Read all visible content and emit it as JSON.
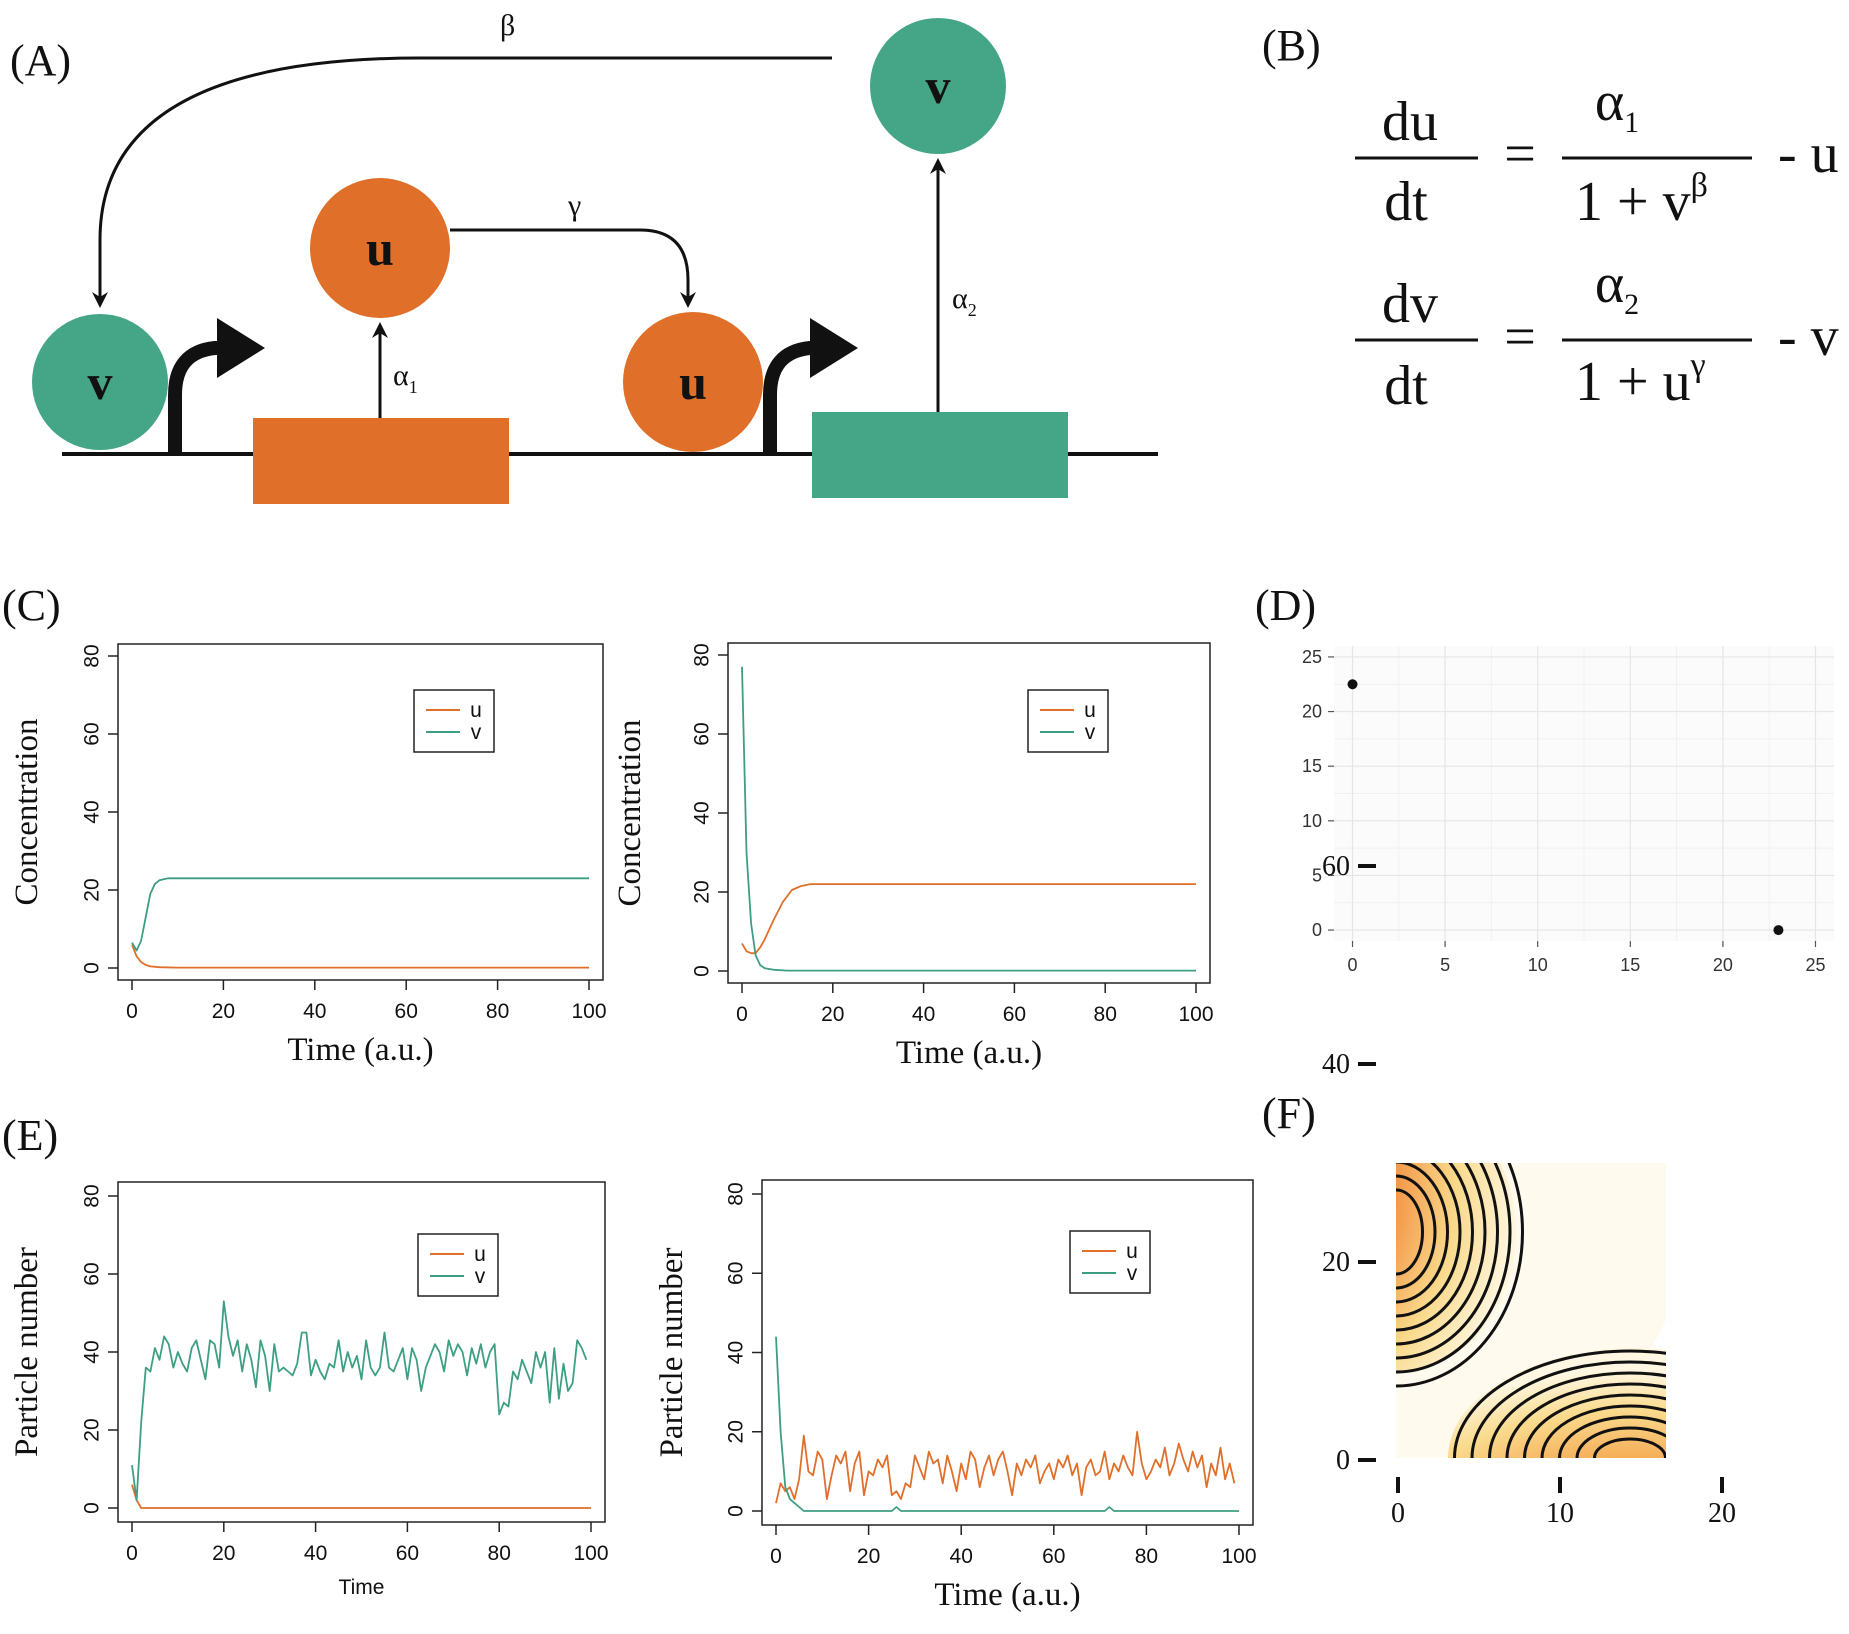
{
  "panel_labels": {
    "A": "(A)",
    "B": "(B)",
    "C": "(C)",
    "D": "(D)",
    "E": "(E)",
    "F": "(F)"
  },
  "colors": {
    "u": "#E07029",
    "v": "#45A687",
    "u_line": "#E06F2B",
    "v_line": "#3E9E83"
  },
  "diagram": {
    "u": "u",
    "v": "v",
    "beta": "β",
    "gamma": "γ",
    "alpha": "α",
    "sub1": "1",
    "sub2": "2"
  },
  "equations": {
    "du": "du",
    "dv": "dv",
    "dt": "dt",
    "equals": "=",
    "alpha": "α",
    "sub1": "1",
    "sub2": "2",
    "one_plus_v": "1 + v",
    "one_plus_u": "1 + u",
    "beta": "β",
    "gamma": "γ",
    "minus_u": "- u",
    "minus_v": "- v"
  },
  "chart_data": [
    {
      "id": "C-left",
      "type": "line",
      "xlabel": "Time (a.u.)",
      "ylabel": "Concentration",
      "xlim": [
        0,
        100
      ],
      "ylim": [
        0,
        80
      ],
      "xticks": [
        0,
        20,
        40,
        60,
        80,
        100
      ],
      "yticks": [
        0,
        20,
        40,
        60,
        80
      ],
      "legend": "top-right",
      "series": [
        {
          "name": "u",
          "x": [
            0,
            1,
            2,
            3,
            4,
            6,
            10,
            100
          ],
          "values": [
            6,
            3,
            1.5,
            0.8,
            0.4,
            0.2,
            0.1,
            0.1
          ]
        },
        {
          "name": "v",
          "x": [
            0,
            1,
            2,
            3,
            4,
            5,
            6,
            7,
            8,
            10,
            100
          ],
          "values": [
            6.5,
            4.5,
            7,
            13,
            19,
            21.5,
            22.5,
            22.8,
            23,
            23,
            23
          ]
        }
      ]
    },
    {
      "id": "C-right",
      "type": "line",
      "xlabel": "Time (a.u.)",
      "ylabel": "Concentration",
      "xlim": [
        0,
        100
      ],
      "ylim": [
        0,
        80
      ],
      "xticks": [
        0,
        20,
        40,
        60,
        80,
        100
      ],
      "yticks": [
        0,
        20,
        40,
        60,
        80
      ],
      "legend": "top-right",
      "series": [
        {
          "name": "u",
          "x": [
            0,
            1,
            2,
            3,
            4,
            5,
            7,
            9,
            11,
            13,
            15,
            20,
            100
          ],
          "values": [
            7,
            5,
            4.5,
            4.5,
            6,
            8,
            13,
            17.5,
            20.5,
            21.5,
            22,
            22,
            22
          ]
        },
        {
          "name": "v",
          "x": [
            0,
            1,
            2,
            3,
            4,
            5,
            7,
            10,
            100
          ],
          "values": [
            77,
            30,
            12,
            4,
            1.5,
            0.7,
            0.3,
            0.1,
            0.1
          ]
        }
      ]
    },
    {
      "id": "D",
      "type": "scatter",
      "xlim": [
        -1,
        26
      ],
      "ylim": [
        -1,
        26
      ],
      "xticks": [
        0,
        5,
        10,
        15,
        20,
        25
      ],
      "yticks": [
        0,
        5,
        10,
        15,
        20,
        25
      ],
      "grid": true,
      "points": [
        {
          "x": 0,
          "y": 22.5
        },
        {
          "x": 23,
          "y": 0
        }
      ]
    },
    {
      "id": "E-left",
      "type": "line",
      "xlabel": "Time",
      "ylabel": "Particle number",
      "xlim": [
        0,
        100
      ],
      "ylim": [
        0,
        80
      ],
      "xticks": [
        0,
        20,
        40,
        60,
        80,
        100
      ],
      "yticks": [
        0,
        20,
        40,
        60,
        80
      ],
      "legend": "top-right",
      "series": [
        {
          "name": "u",
          "x": [
            0,
            1,
            2,
            100
          ],
          "values": [
            6,
            2,
            0,
            0
          ]
        },
        {
          "name": "v",
          "x": [
            0,
            1,
            2,
            3,
            4,
            5,
            6,
            7,
            8,
            9,
            10,
            11,
            12,
            13,
            14,
            15,
            16,
            17,
            18,
            19,
            20,
            21,
            22,
            23,
            24,
            25,
            26,
            27,
            28,
            29,
            30,
            31,
            32,
            33,
            34,
            35,
            36,
            37,
            38,
            39,
            40,
            41,
            42,
            43,
            44,
            45,
            46,
            47,
            48,
            49,
            50,
            51,
            52,
            53,
            54,
            55,
            56,
            57,
            58,
            59,
            60,
            61,
            62,
            63,
            64,
            65,
            66,
            67,
            68,
            69,
            70,
            71,
            72,
            73,
            74,
            75,
            76,
            77,
            78,
            79,
            80,
            81,
            82,
            83,
            84,
            85,
            86,
            87,
            88,
            89,
            90,
            91,
            92,
            93,
            94,
            95,
            96,
            97,
            98,
            99
          ],
          "values": [
            11,
            2,
            22,
            36,
            35,
            41,
            38,
            44,
            42,
            36,
            40,
            37,
            35,
            41,
            43,
            38,
            33,
            43,
            42,
            36,
            53,
            44,
            39,
            43,
            35,
            42,
            38,
            31,
            43,
            39,
            30,
            42,
            35,
            36,
            35,
            34,
            37,
            45,
            45,
            34,
            38,
            35,
            33,
            37,
            36,
            43,
            35,
            40,
            36,
            39,
            33,
            43,
            36,
            34,
            36,
            45,
            36,
            35,
            38,
            41,
            33,
            41,
            38,
            30,
            36,
            39,
            42,
            40,
            35,
            43,
            39,
            42,
            40,
            34,
            41,
            37,
            42,
            36,
            40,
            42,
            24,
            27,
            26,
            35,
            33,
            38,
            35,
            32,
            40,
            36,
            40,
            27,
            41,
            28,
            37,
            30,
            32,
            43,
            41,
            38
          ]
        }
      ]
    },
    {
      "id": "E-right",
      "type": "line",
      "xlabel": "Time (a.u.)",
      "ylabel": "Particle number",
      "xlim": [
        0,
        100
      ],
      "ylim": [
        0,
        80
      ],
      "xticks": [
        0,
        20,
        40,
        60,
        80,
        100
      ],
      "yticks": [
        0,
        20,
        40,
        60,
        80
      ],
      "legend": "top-right",
      "series": [
        {
          "name": "u",
          "x": [
            0,
            1,
            2,
            3,
            4,
            5,
            6,
            7,
            8,
            9,
            10,
            11,
            12,
            13,
            14,
            15,
            16,
            17,
            18,
            19,
            20,
            21,
            22,
            23,
            24,
            25,
            26,
            27,
            28,
            29,
            30,
            31,
            32,
            33,
            34,
            35,
            36,
            37,
            38,
            39,
            40,
            41,
            42,
            43,
            44,
            45,
            46,
            47,
            48,
            49,
            50,
            51,
            52,
            53,
            54,
            55,
            56,
            57,
            58,
            59,
            60,
            61,
            62,
            63,
            64,
            65,
            66,
            67,
            68,
            69,
            70,
            71,
            72,
            73,
            74,
            75,
            76,
            77,
            78,
            79,
            80,
            81,
            82,
            83,
            84,
            85,
            86,
            87,
            88,
            89,
            90,
            91,
            92,
            93,
            94,
            95,
            96,
            97,
            98,
            99
          ],
          "values": [
            2,
            7,
            5,
            6,
            3,
            8,
            19,
            10,
            9,
            15,
            13,
            3,
            9,
            14,
            12,
            15,
            5,
            12,
            15,
            4,
            10,
            9,
            13,
            11,
            14,
            4,
            5,
            3,
            7,
            6,
            14,
            11,
            8,
            15,
            12,
            13,
            7,
            14,
            10,
            5,
            12,
            8,
            15,
            13,
            6,
            11,
            14,
            9,
            13,
            15,
            10,
            4,
            12,
            9,
            13,
            11,
            14,
            7,
            10,
            12,
            8,
            13,
            11,
            14,
            9,
            12,
            4,
            11,
            13,
            9,
            10,
            15,
            8,
            12,
            10,
            14,
            11,
            9,
            20,
            12,
            8,
            10,
            13,
            11,
            16,
            9,
            12,
            17,
            13,
            10,
            15,
            11,
            14,
            6,
            12,
            9,
            16,
            8,
            12,
            7
          ]
        },
        {
          "name": "v",
          "x": [
            0,
            1,
            2,
            3,
            4,
            5,
            6,
            7,
            24,
            25,
            26,
            27,
            28,
            70,
            71,
            72,
            73,
            74,
            100
          ],
          "values": [
            44,
            20,
            6,
            3,
            2,
            1,
            0,
            0,
            0,
            0,
            1,
            0,
            0,
            0,
            0,
            1,
            0,
            0,
            0
          ]
        }
      ]
    },
    {
      "id": "F",
      "type": "heatmap",
      "xticks": [
        0,
        10,
        20
      ],
      "yticks": [
        0,
        20,
        40,
        60
      ],
      "modes": [
        {
          "x": 0,
          "y": 45
        },
        {
          "x": 14,
          "y": 0
        }
      ]
    }
  ]
}
